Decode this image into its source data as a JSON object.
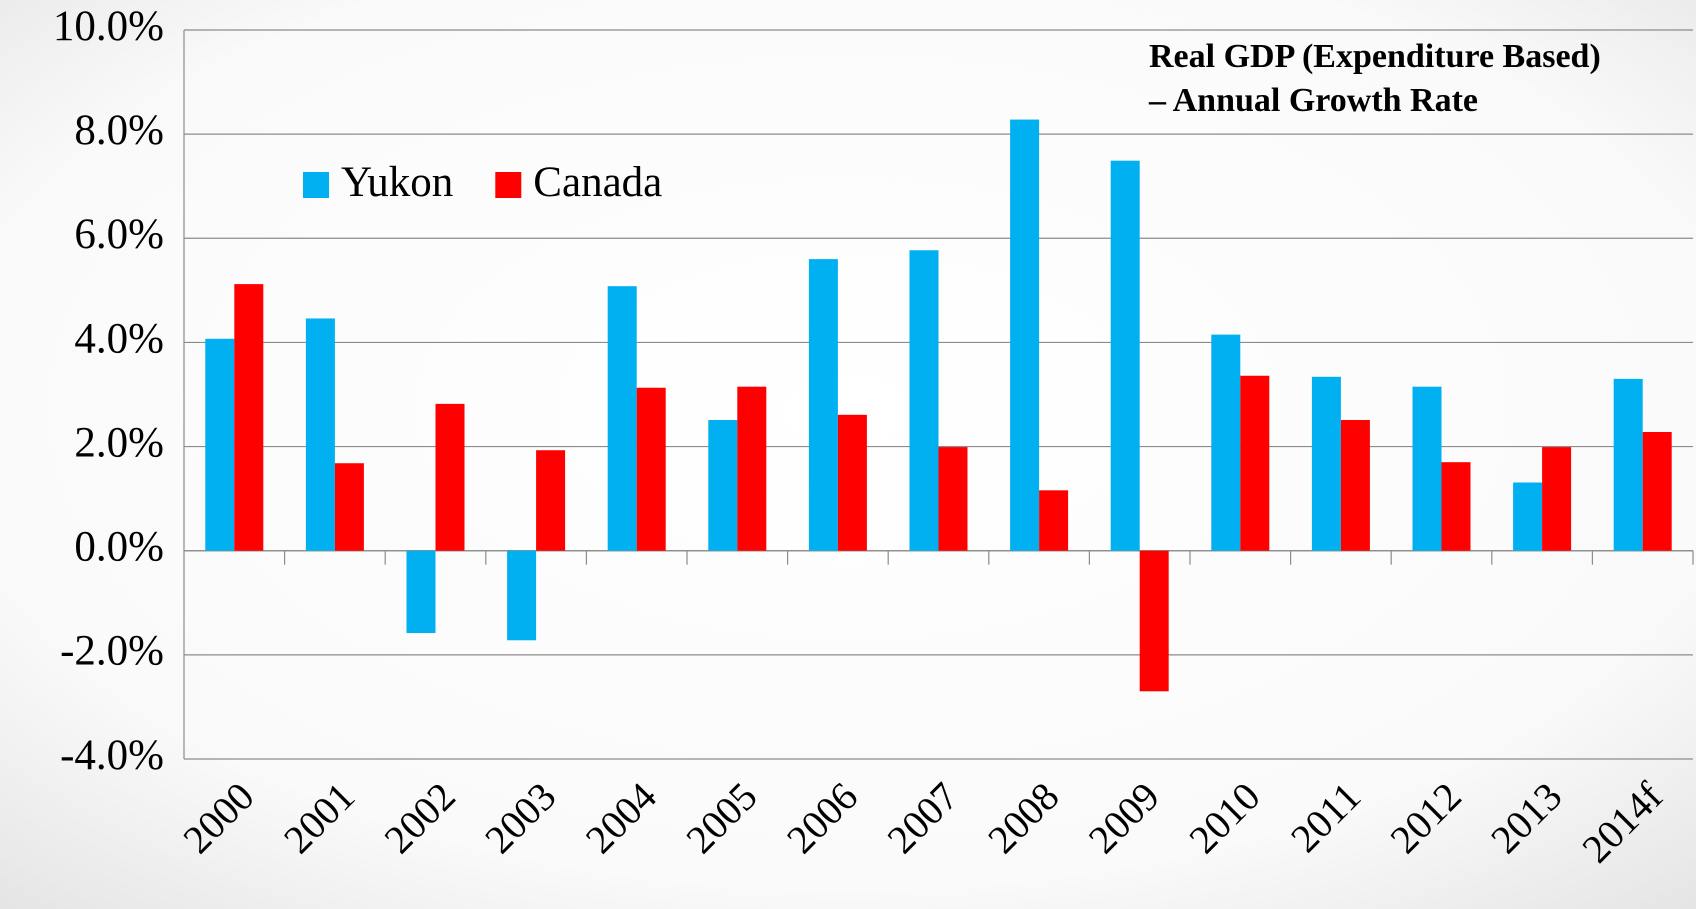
{
  "chart_data": {
    "type": "bar",
    "title": [
      "Real GDP (Expenditure Based)",
      "– Annual Growth Rate"
    ],
    "categories": [
      "2000",
      "2001",
      "2002",
      "2003",
      "2004",
      "2005",
      "2006",
      "2007",
      "2008",
      "2009",
      "2010",
      "2011",
      "2012",
      "2013",
      "2014f"
    ],
    "series": [
      {
        "name": "Yukon",
        "color": "#00b0f0",
        "values": [
          4.07,
          4.46,
          -1.58,
          -1.72,
          5.08,
          2.51,
          5.6,
          5.77,
          8.28,
          7.49,
          4.15,
          3.34,
          3.15,
          1.31,
          3.3
        ]
      },
      {
        "name": "Canada",
        "color": "#ff0000",
        "values": [
          5.12,
          1.68,
          2.82,
          1.93,
          3.13,
          3.15,
          2.61,
          1.99,
          1.16,
          -2.7,
          3.36,
          2.51,
          1.7,
          1.99,
          2.28
        ]
      }
    ],
    "ylim": [
      -4,
      10
    ],
    "yticks": [
      {
        "value": -4,
        "label": "-4.0%"
      },
      {
        "value": -2,
        "label": "-2.0%"
      },
      {
        "value": 0,
        "label": "0.0%"
      },
      {
        "value": 2,
        "label": "2.0%"
      },
      {
        "value": 4,
        "label": "4.0%"
      },
      {
        "value": 6,
        "label": "6.0%"
      },
      {
        "value": 8,
        "label": "8.0%"
      },
      {
        "value": 10,
        "label": "10.0%"
      }
    ],
    "grid": true,
    "legend": "top-left"
  }
}
